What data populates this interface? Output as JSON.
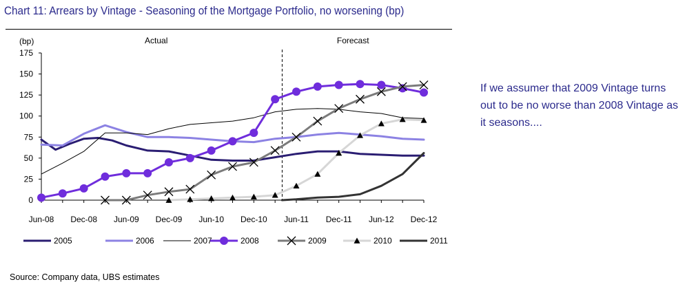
{
  "title": "Chart 11: Arrears by Vintage - Seasoning of the Mortgage Portfolio, no worsening (bp)",
  "note": "If we assumer that 2009 Vintage turns out to be no worse than 2008 Vintage as it seasons....",
  "source": "Source: Company data, UBS estimates",
  "chart_data": {
    "type": "line",
    "ylabel": "(bp)",
    "ylim": [
      0,
      175
    ],
    "yticks": [
      0,
      25,
      50,
      75,
      100,
      125,
      150,
      175
    ],
    "x_start": "Jun-08",
    "x_end": "Dec-12",
    "x": [
      "Jun-08",
      "Sep-08",
      "Dec-08",
      "Mar-09",
      "Jun-09",
      "Sep-09",
      "Dec-09",
      "Mar-10",
      "Jun-10",
      "Sep-10",
      "Dec-10",
      "Mar-11",
      "Jun-11",
      "Sep-11",
      "Dec-11",
      "Mar-12",
      "Jun-12",
      "Sep-12",
      "Dec-12"
    ],
    "xtick_labels": [
      "Jun-08",
      "Dec-08",
      "Jun-09",
      "Dec-09",
      "Jun-10",
      "Dec-10",
      "Jun-11",
      "Dec-11",
      "Jun-12",
      "Dec-12"
    ],
    "region_labels": [
      "Actual",
      "Forecast"
    ],
    "forecast_start": "Apr-11",
    "series": [
      {
        "name": "2005",
        "color": "#2a1d72",
        "style": "thick",
        "marker": "none",
        "points": [
          [
            "Jun-08",
            72
          ],
          [
            "Jul-08",
            66
          ],
          [
            "Aug-08",
            60
          ],
          [
            "Oct-08",
            67
          ],
          [
            "Dec-08",
            73
          ],
          [
            "Feb-09",
            74
          ],
          [
            "Apr-09",
            71
          ],
          [
            "Jun-09",
            65
          ],
          [
            "Sep-09",
            59
          ],
          [
            "Dec-09",
            58
          ],
          [
            "Mar-10",
            53
          ],
          [
            "Jun-10",
            48
          ],
          [
            "Sep-10",
            47
          ],
          [
            "Dec-10",
            47
          ],
          [
            "Mar-11",
            51
          ],
          [
            "Jun-11",
            55
          ],
          [
            "Sep-11",
            58
          ],
          [
            "Dec-11",
            58
          ],
          [
            "Mar-12",
            55
          ],
          [
            "Jun-12",
            54
          ],
          [
            "Sep-12",
            53
          ],
          [
            "Dec-12",
            53
          ]
        ]
      },
      {
        "name": "2006",
        "color": "#8c82e3",
        "style": "thick",
        "marker": "none",
        "points": [
          [
            "Jun-08",
            66
          ],
          [
            "Sep-08",
            65
          ],
          [
            "Dec-08",
            79
          ],
          [
            "Mar-09",
            89
          ],
          [
            "Jun-09",
            81
          ],
          [
            "Sep-09",
            75
          ],
          [
            "Dec-09",
            75
          ],
          [
            "Mar-10",
            74
          ],
          [
            "Jun-10",
            72
          ],
          [
            "Sep-10",
            70
          ],
          [
            "Dec-10",
            69
          ],
          [
            "Mar-11",
            73
          ],
          [
            "Jun-11",
            75
          ],
          [
            "Sep-11",
            78
          ],
          [
            "Dec-11",
            80
          ],
          [
            "Mar-12",
            78
          ],
          [
            "Jun-12",
            76
          ],
          [
            "Sep-12",
            73
          ],
          [
            "Dec-12",
            72
          ]
        ]
      },
      {
        "name": "2007",
        "color": "#000000",
        "style": "thin",
        "marker": "none",
        "points": [
          [
            "Jun-08",
            31
          ],
          [
            "Sep-08",
            44
          ],
          [
            "Dec-08",
            58
          ],
          [
            "Mar-09",
            80
          ],
          [
            "Jun-09",
            80
          ],
          [
            "Sep-09",
            78
          ],
          [
            "Dec-09",
            85
          ],
          [
            "Mar-10",
            90
          ],
          [
            "Jun-10",
            92
          ],
          [
            "Sep-10",
            94
          ],
          [
            "Dec-10",
            98
          ],
          [
            "Mar-11",
            105
          ],
          [
            "Jun-11",
            108
          ],
          [
            "Sep-11",
            109
          ],
          [
            "Dec-11",
            108
          ],
          [
            "Mar-12",
            105
          ],
          [
            "Jun-12",
            103
          ],
          [
            "Sep-12",
            98
          ],
          [
            "Dec-12",
            97
          ]
        ]
      },
      {
        "name": "2008",
        "color": "#6f2ddc",
        "style": "thick",
        "marker": "circle",
        "points": [
          [
            "Jun-08",
            3
          ],
          [
            "Sep-08",
            8
          ],
          [
            "Dec-08",
            14
          ],
          [
            "Mar-09",
            28
          ],
          [
            "Jun-09",
            32
          ],
          [
            "Sep-09",
            32
          ],
          [
            "Dec-09",
            45
          ],
          [
            "Mar-10",
            50
          ],
          [
            "Jun-10",
            59
          ],
          [
            "Sep-10",
            70
          ],
          [
            "Dec-10",
            80
          ],
          [
            "Mar-11",
            120
          ],
          [
            "Jun-11",
            129
          ],
          [
            "Sep-11",
            135
          ],
          [
            "Dec-11",
            137
          ],
          [
            "Mar-12",
            138
          ],
          [
            "Jun-12",
            137
          ],
          [
            "Sep-12",
            133
          ],
          [
            "Dec-12",
            128
          ]
        ]
      },
      {
        "name": "2009",
        "color": "#7b7b7b",
        "style": "thick",
        "marker": "x",
        "points": [
          [
            "Mar-09",
            0
          ],
          [
            "Jun-09",
            0
          ],
          [
            "Sep-09",
            6
          ],
          [
            "Dec-09",
            10
          ],
          [
            "Mar-10",
            13
          ],
          [
            "Jun-10",
            30
          ],
          [
            "Sep-10",
            40
          ],
          [
            "Dec-10",
            45
          ],
          [
            "Mar-11",
            59
          ],
          [
            "Jun-11",
            75
          ],
          [
            "Sep-11",
            94
          ],
          [
            "Dec-11",
            109
          ],
          [
            "Mar-12",
            120
          ],
          [
            "Jun-12",
            129
          ],
          [
            "Sep-12",
            135
          ],
          [
            "Dec-12",
            137
          ]
        ]
      },
      {
        "name": "2010",
        "color": "#d6d6d6",
        "style": "thick",
        "marker": "triangle",
        "points": [
          [
            "Dec-09",
            0
          ],
          [
            "Mar-10",
            1
          ],
          [
            "Jun-10",
            2
          ],
          [
            "Sep-10",
            3
          ],
          [
            "Dec-10",
            4
          ],
          [
            "Mar-11",
            6
          ],
          [
            "Jun-11",
            17
          ],
          [
            "Sep-11",
            31
          ],
          [
            "Dec-11",
            56
          ],
          [
            "Mar-12",
            77
          ],
          [
            "Jun-12",
            91
          ],
          [
            "Sep-12",
            96
          ],
          [
            "Dec-12",
            95
          ]
        ]
      },
      {
        "name": "2011",
        "color": "#333333",
        "style": "thick",
        "marker": "none",
        "points": [
          [
            "Apr-11",
            0
          ],
          [
            "Jun-11",
            1
          ],
          [
            "Sep-11",
            3
          ],
          [
            "Dec-11",
            4
          ],
          [
            "Mar-12",
            7
          ],
          [
            "Jun-12",
            17
          ],
          [
            "Sep-12",
            31
          ],
          [
            "Dec-12",
            56
          ]
        ]
      }
    ]
  }
}
